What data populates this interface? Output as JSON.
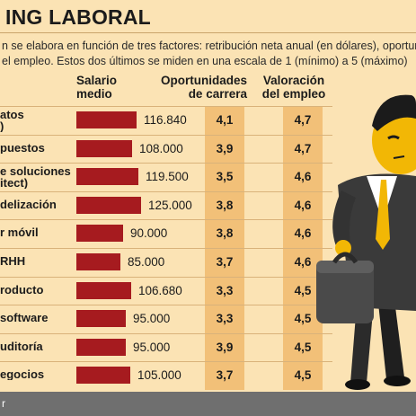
{
  "title": "ING LABORAL",
  "subtitle": "n se elabora en función de tres factores: retribución neta anual (en dólares), oportuni\nel empleo. Estos dos últimos se miden en una escala de 1 (mínimo) a 5 (máximo)",
  "headers": {
    "salary": "Salario\nmedio",
    "career": "Oportunidades\nde carrera",
    "value": "Valoración\ndel empleo"
  },
  "footer": "r",
  "colors": {
    "bar": "#a61b1f",
    "background": "#fbe3b4",
    "column_shade": "#f2c078",
    "footer": "#6f6f6f"
  },
  "chart_data": {
    "type": "table",
    "columns": [
      "Salario medio",
      "Oportunidades de carrera",
      "Valoración del empleo"
    ],
    "rows": [
      {
        "label": "atos\n)",
        "salary": 116840,
        "salary_label": "116.840",
        "career": "4,1",
        "value": "4,7"
      },
      {
        "label": "puestos",
        "salary": 108000,
        "salary_label": "108.000",
        "career": "3,9",
        "value": "4,7"
      },
      {
        "label": "e soluciones\nitect)",
        "salary": 119500,
        "salary_label": "119.500",
        "career": "3,5",
        "value": "4,6"
      },
      {
        "label": "delización",
        "salary": 125000,
        "salary_label": "125.000",
        "career": "3,8",
        "value": "4,6"
      },
      {
        "label": "r móvil",
        "salary": 90000,
        "salary_label": "90.000",
        "career": "3,8",
        "value": "4,6"
      },
      {
        "label": "RHH",
        "salary": 85000,
        "salary_label": "85.000",
        "career": "3,7",
        "value": "4,6"
      },
      {
        "label": "roducto",
        "salary": 106680,
        "salary_label": "106.680",
        "career": "3,3",
        "value": "4,5"
      },
      {
        "label": "software",
        "salary": 95000,
        "salary_label": "95.000",
        "career": "3,3",
        "value": "4,5"
      },
      {
        "label": "uditoría",
        "salary": 95000,
        "salary_label": "95.000",
        "career": "3,9",
        "value": "4,5"
      },
      {
        "label": "egocios",
        "salary": 105000,
        "salary_label": "105.000",
        "career": "3,7",
        "value": "4,5"
      }
    ]
  }
}
